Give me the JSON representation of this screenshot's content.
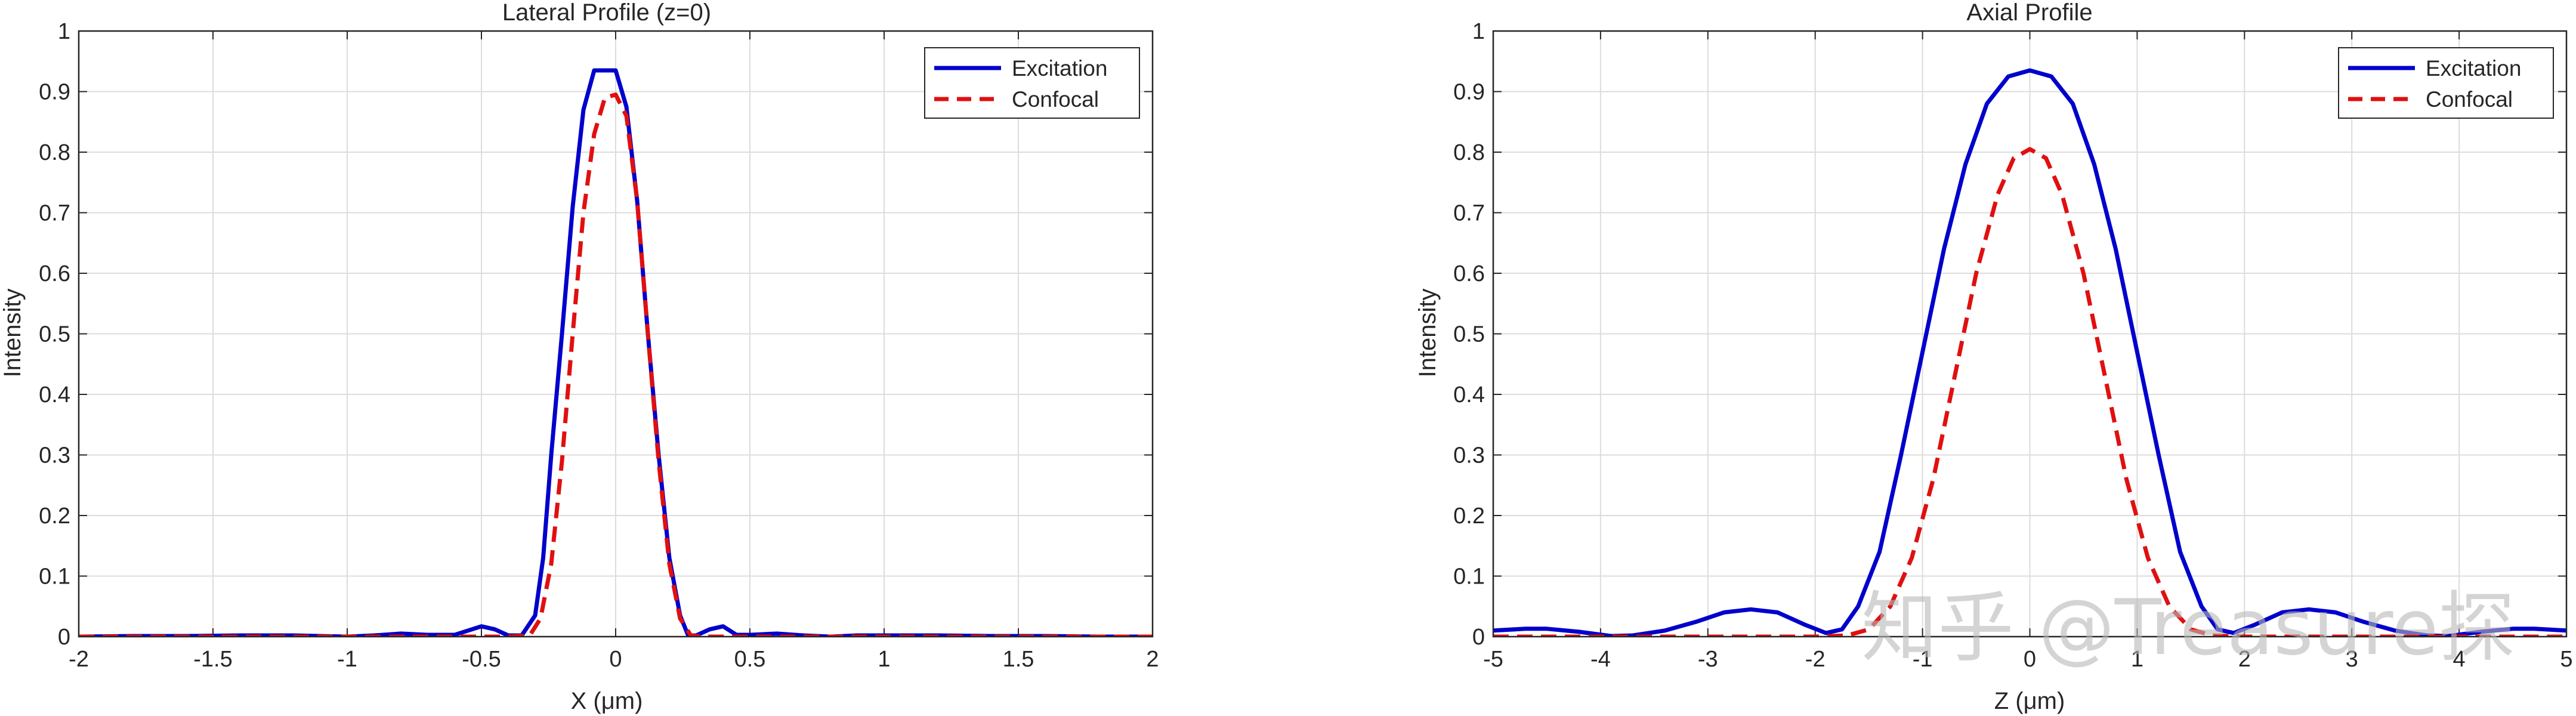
{
  "watermark": "知乎 @Treasure探",
  "chart_data": [
    {
      "type": "line",
      "title": "Lateral Profile (z=0)",
      "xlabel": "X (μm)",
      "ylabel": "Intensity",
      "xlim": [
        -2,
        2
      ],
      "ylim": [
        0,
        1
      ],
      "xticks": [
        "-2",
        "-1.5",
        "-1",
        "-0.5",
        "0",
        "0.5",
        "1",
        "1.5",
        "2"
      ],
      "yticks": [
        "0",
        "0.1",
        "0.2",
        "0.3",
        "0.4",
        "0.5",
        "0.6",
        "0.7",
        "0.8",
        "0.9",
        "1"
      ],
      "grid": true,
      "legend_position": "top-right",
      "series": [
        {
          "name": "Excitation",
          "color": "#0000cc",
          "style": "solid",
          "x": [
            -2,
            -1.8,
            -1.6,
            -1.4,
            -1.2,
            -1.0,
            -0.9,
            -0.8,
            -0.7,
            -0.6,
            -0.5,
            -0.45,
            -0.4,
            -0.35,
            -0.3,
            -0.27,
            -0.24,
            -0.2,
            -0.16,
            -0.12,
            -0.08,
            -0.04,
            0,
            0.04,
            0.08,
            0.12,
            0.16,
            0.2,
            0.24,
            0.27,
            0.3,
            0.35,
            0.4,
            0.45,
            0.5,
            0.6,
            0.7,
            0.8,
            0.9,
            1.0,
            1.2,
            1.4,
            1.6,
            1.8,
            2.0
          ],
          "y": [
            0.0,
            0.001,
            0.001,
            0.002,
            0.002,
            0.0,
            0.002,
            0.005,
            0.003,
            0.003,
            0.017,
            0.012,
            0.002,
            0.002,
            0.035,
            0.13,
            0.3,
            0.5,
            0.71,
            0.87,
            0.935,
            0.935,
            0.935,
            0.875,
            0.72,
            0.5,
            0.3,
            0.13,
            0.035,
            0.002,
            0.002,
            0.012,
            0.017,
            0.003,
            0.003,
            0.005,
            0.002,
            0.0,
            0.002,
            0.002,
            0.002,
            0.001,
            0.001,
            0.0,
            0.0
          ]
        },
        {
          "name": "Confocal",
          "color": "#e01010",
          "style": "dashed",
          "x": [
            -2,
            -1.5,
            -1.0,
            -0.5,
            -0.4,
            -0.32,
            -0.28,
            -0.24,
            -0.2,
            -0.16,
            -0.12,
            -0.08,
            -0.04,
            0,
            0.04,
            0.08,
            0.12,
            0.16,
            0.2,
            0.24,
            0.28,
            0.32,
            0.4,
            0.5,
            1.0,
            1.5,
            2.0
          ],
          "y": [
            0.0,
            0.0,
            0.0,
            0.0,
            0.0,
            0.002,
            0.03,
            0.12,
            0.29,
            0.5,
            0.7,
            0.83,
            0.89,
            0.895,
            0.86,
            0.72,
            0.5,
            0.29,
            0.12,
            0.03,
            0.002,
            0.0,
            0.0,
            0.0,
            0.0,
            0.0,
            0.0
          ]
        }
      ]
    },
    {
      "type": "line",
      "title": "Axial Profile",
      "xlabel": "Z (μm)",
      "ylabel": "Intensity",
      "xlim": [
        -5,
        5
      ],
      "ylim": [
        0,
        1
      ],
      "xticks": [
        "-5",
        "-4",
        "-3",
        "-2",
        "-1",
        "0",
        "1",
        "2",
        "3",
        "4",
        "5"
      ],
      "yticks": [
        "0",
        "0.1",
        "0.2",
        "0.3",
        "0.4",
        "0.5",
        "0.6",
        "0.7",
        "0.8",
        "0.9",
        "1"
      ],
      "grid": true,
      "legend_position": "top-right",
      "series": [
        {
          "name": "Excitation",
          "color": "#0000cc",
          "style": "solid",
          "x": [
            -5.0,
            -4.7,
            -4.5,
            -4.2,
            -3.9,
            -3.7,
            -3.4,
            -3.1,
            -2.85,
            -2.6,
            -2.35,
            -2.1,
            -1.9,
            -1.75,
            -1.6,
            -1.4,
            -1.2,
            -1.0,
            -0.8,
            -0.6,
            -0.4,
            -0.2,
            0,
            0.2,
            0.4,
            0.6,
            0.8,
            1.0,
            1.2,
            1.4,
            1.6,
            1.75,
            1.9,
            2.1,
            2.35,
            2.6,
            2.85,
            3.1,
            3.4,
            3.7,
            3.9,
            4.2,
            4.5,
            4.7,
            5.0
          ],
          "y": [
            0.01,
            0.013,
            0.013,
            0.008,
            0.001,
            0.002,
            0.01,
            0.025,
            0.04,
            0.045,
            0.04,
            0.02,
            0.006,
            0.012,
            0.05,
            0.14,
            0.3,
            0.47,
            0.64,
            0.78,
            0.88,
            0.925,
            0.935,
            0.925,
            0.88,
            0.78,
            0.64,
            0.47,
            0.3,
            0.14,
            0.05,
            0.012,
            0.006,
            0.02,
            0.04,
            0.045,
            0.04,
            0.025,
            0.01,
            0.002,
            0.001,
            0.008,
            0.013,
            0.013,
            0.01
          ]
        },
        {
          "name": "Confocal",
          "color": "#e01010",
          "style": "dashed",
          "x": [
            -5.0,
            -3.0,
            -2.0,
            -1.7,
            -1.5,
            -1.3,
            -1.1,
            -0.9,
            -0.7,
            -0.5,
            -0.3,
            -0.15,
            0,
            0.15,
            0.3,
            0.5,
            0.7,
            0.9,
            1.1,
            1.3,
            1.5,
            1.7,
            2.0,
            3.0,
            5.0
          ],
          "y": [
            0.0,
            0.0,
            0.0,
            0.002,
            0.012,
            0.05,
            0.13,
            0.26,
            0.43,
            0.6,
            0.73,
            0.79,
            0.805,
            0.79,
            0.73,
            0.6,
            0.43,
            0.26,
            0.13,
            0.05,
            0.012,
            0.002,
            0.0,
            0.0,
            0.0
          ]
        }
      ]
    }
  ]
}
